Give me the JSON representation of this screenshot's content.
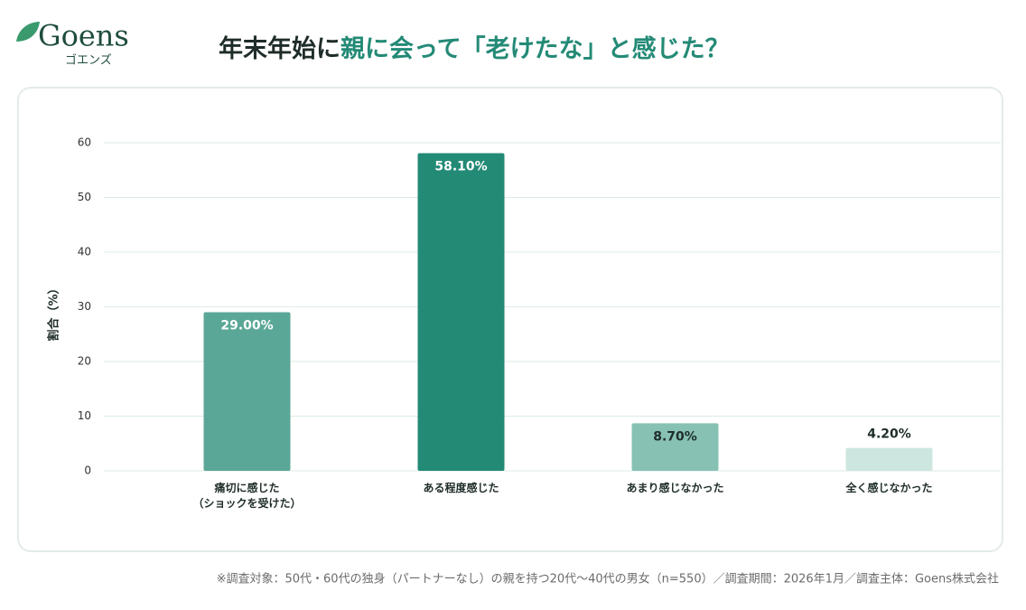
{
  "logo": {
    "name": "Goens",
    "kana": "ゴエンズ"
  },
  "chart_data": {
    "type": "bar",
    "title": [
      "年末年始に",
      "親に会って「老けたな」と感じた？"
    ],
    "ylabel": "割合（%）",
    "categories": [
      "痛切に感じた\n（ショックを受けた）",
      "ある程度感じた",
      "あまり感じなかった",
      "全く感じなかった"
    ],
    "values": [
      29,
      58.1,
      8.7,
      4.2
    ],
    "value_labels": [
      "29.00%",
      "58.10%",
      "8.70%",
      "4.20%"
    ],
    "colors": [
      "#5ba797",
      "#238a76",
      "#87c1b4",
      "#cde6df"
    ],
    "label_colors": [
      "#ffffff",
      "#ffffff",
      "#1f2d2a",
      "#1f2d2a"
    ],
    "ylim": [
      0,
      60
    ],
    "yticks": [
      0,
      10,
      20,
      30,
      40,
      50,
      60
    ],
    "grid": true,
    "source": "※調査対象：50代・60代の独身（パートナーなし）の親を持つ20代〜40代の男女（n=550）／調査期間：2026年1月／調査主体：Goens株式会社"
  }
}
